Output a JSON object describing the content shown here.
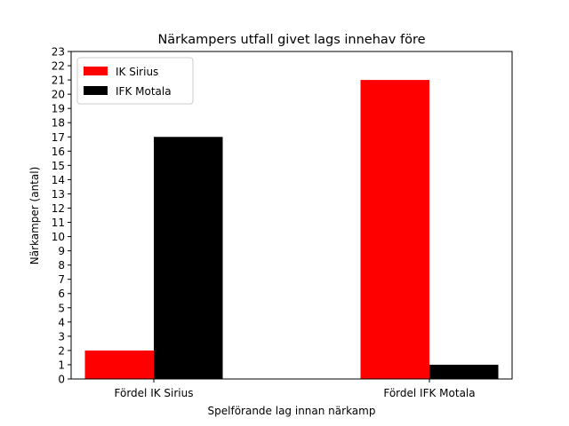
{
  "chart_data": {
    "type": "bar",
    "title": "Närkampers utfall givet lags innehav före",
    "xlabel": "Spelförande lag innan närkamp",
    "ylabel": "Närkamper (antal)",
    "categories": [
      "Fördel IK Sirius",
      "Fördel IFK Motala"
    ],
    "series": [
      {
        "name": "IK Sirius",
        "color": "#ff0000",
        "values": [
          2,
          21
        ]
      },
      {
        "name": "IFK Motala",
        "color": "#000000",
        "values": [
          17,
          1
        ]
      }
    ],
    "ylim": [
      0,
      23
    ],
    "yticks": [
      0,
      1,
      2,
      3,
      4,
      5,
      6,
      7,
      8,
      9,
      10,
      11,
      12,
      13,
      14,
      15,
      16,
      17,
      18,
      19,
      20,
      21,
      22,
      23
    ],
    "grid": false,
    "legend_position": "top-left"
  }
}
